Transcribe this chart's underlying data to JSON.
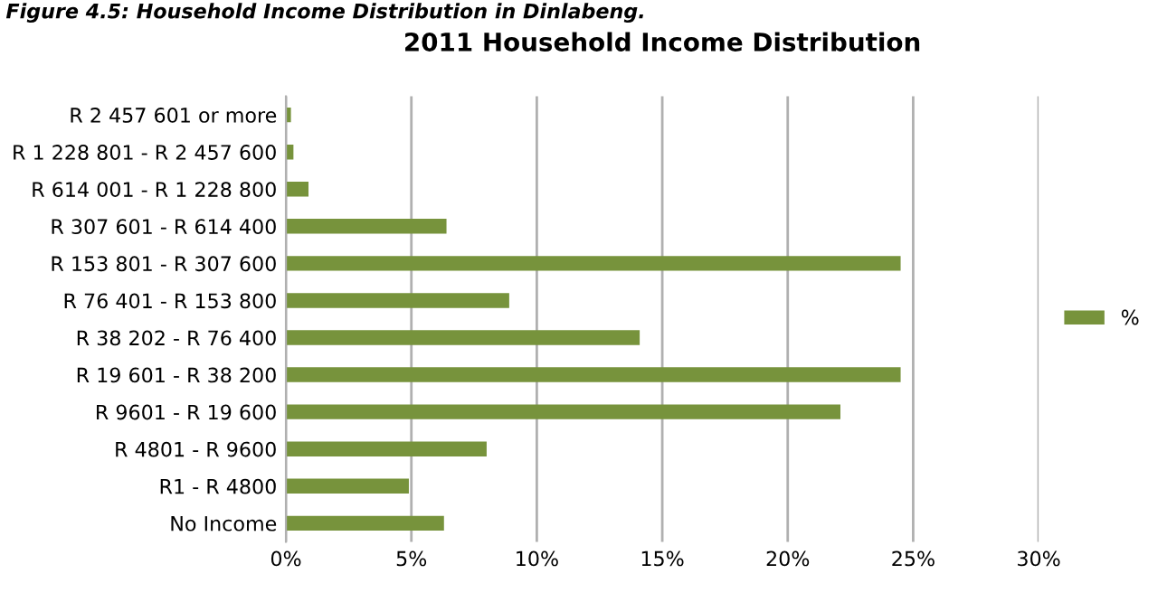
{
  "chart_data": {
    "type": "bar",
    "orientation": "horizontal",
    "title": "2011 Household Income Distribution",
    "annotations": [
      "Figure 4.5: Household Income Distribution in Dinlabeng."
    ],
    "categories": [
      "R 2 457 601 or more",
      "R 1 228 801 - R 2 457 600",
      "R 614 001 - R 1 228 800",
      "R 307 601 - R 614 400",
      "R 153 801 - R 307 600",
      "R 76 401 - R 153 800",
      "R 38 202 - R 76 400",
      "R 19 601 - R 38 200",
      "R 9601 - R 19 600",
      "R 4801 - R 9600",
      "R1 - R 4800",
      "No Income"
    ],
    "series": [
      {
        "name": "%",
        "color": "#77933c",
        "values": [
          0.2,
          0.3,
          0.9,
          6.4,
          24.5,
          8.9,
          14.1,
          24.5,
          22.1,
          8.0,
          4.9,
          6.3
        ]
      }
    ],
    "xlim": [
      0,
      30
    ],
    "xticks": [
      {
        "value": 0,
        "label": "0%"
      },
      {
        "value": 5,
        "label": "5%"
      },
      {
        "value": 10,
        "label": "10%"
      },
      {
        "value": 15,
        "label": "15%"
      },
      {
        "value": 20,
        "label": "20%"
      },
      {
        "value": 25,
        "label": "25%"
      },
      {
        "value": 30,
        "label": "30%"
      }
    ],
    "grid": "x",
    "legend": "right"
  }
}
